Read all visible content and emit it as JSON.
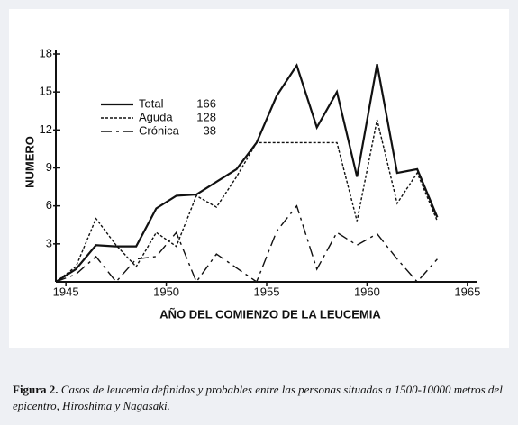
{
  "chart_data": {
    "type": "line",
    "x": [
      1944.5,
      1945.5,
      1946.5,
      1947.5,
      1948.5,
      1949.5,
      1950.5,
      1951.5,
      1952.5,
      1953.5,
      1954.5,
      1955.5,
      1956.5,
      1957.5,
      1958.5,
      1959.5,
      1960.5,
      1961.5,
      1962.5,
      1963.5
    ],
    "series": [
      {
        "name": "Total",
        "total": 166,
        "color": "#111111",
        "dash": "solid",
        "values": [
          0,
          1,
          2.9,
          2.8,
          2.8,
          5.8,
          6.8,
          6.9,
          7.9,
          8.9,
          11,
          14.7,
          17.1,
          12.2,
          15,
          8.3,
          17.2,
          8.6,
          8.9,
          5.1
        ]
      },
      {
        "name": "Aguda",
        "total": 128,
        "color": "#111111",
        "dash": "dotted",
        "values": [
          0,
          1.2,
          5,
          2.9,
          1.2,
          3.9,
          2.8,
          6.8,
          5.9,
          8.3,
          11,
          11,
          11,
          11,
          11,
          4.8,
          12.8,
          6.2,
          8.6,
          4.8
        ]
      },
      {
        "name": "Crónica",
        "total": 38,
        "color": "#111111",
        "dash": "dashdot",
        "values": [
          0,
          0.6,
          2,
          0,
          1.8,
          2,
          3.9,
          0,
          2.2,
          1.1,
          0,
          4,
          6,
          1,
          3.9,
          2.9,
          3.8,
          1.8,
          0,
          1.8
        ]
      }
    ],
    "xlabel": "AÑO DEL COMIENZO DE LA LEUCEMIA",
    "ylabel": "NUMERO",
    "xlim": [
      1944.5,
      1965.5
    ],
    "xticks": [
      1945,
      1950,
      1955,
      1960,
      1965
    ],
    "ylim": [
      0,
      18
    ],
    "yticks": [
      3,
      6,
      9,
      12,
      15,
      18
    ],
    "legend": "upper left"
  },
  "caption": {
    "label": "Figura 2.",
    "text": "Casos de leucemia definidos y probables entre las personas situadas a 1500-10000 metros del epicentro, Hiroshima y Nagasaki."
  }
}
